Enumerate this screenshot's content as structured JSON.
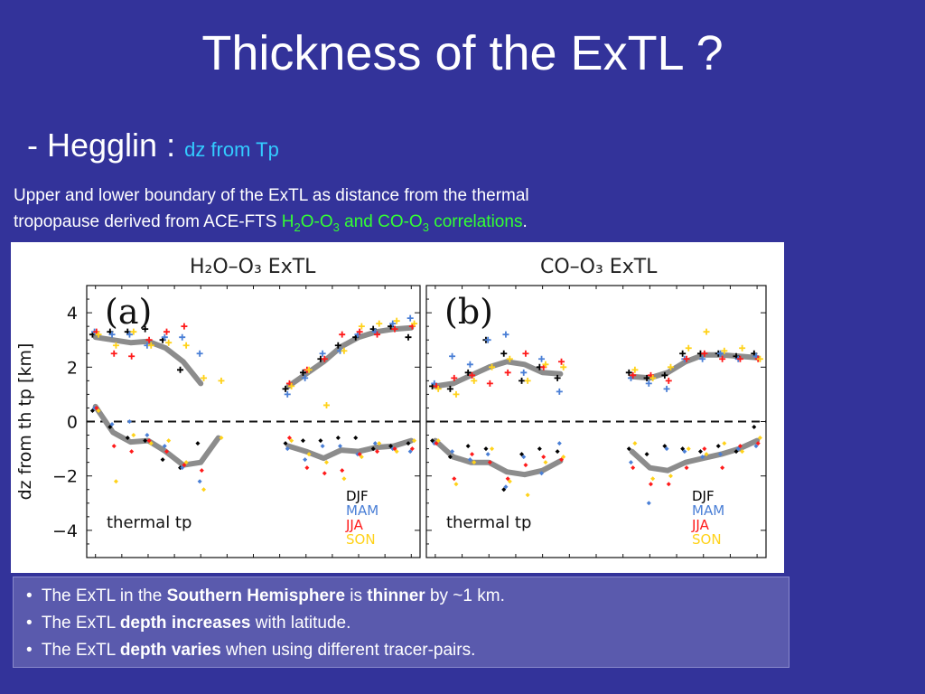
{
  "slide": {
    "title": "Thickness of the ExTL ?",
    "subtitle_prefix": "- Hegglin : ",
    "subtitle_note": "dz from Tp",
    "desc_line1": "Upper and lower boundary of the ExTL as distance from the thermal",
    "desc_line2_pre": "tropopause derived from ACE-FTS ",
    "desc_h": "H",
    "desc_sub2": "2",
    "desc_o": "O-O",
    "desc_sub3": "3",
    "desc_and": " and CO-O",
    "desc_sub3b": "3",
    "desc_corr": " correlations",
    "desc_end": "."
  },
  "bullets": [
    {
      "pre": "The ExTL in the ",
      "b1": "Southern Hemisphere",
      "mid": " is ",
      "b2": "thinner",
      "post": " by ~1 km."
    },
    {
      "pre": "The ExTL ",
      "b1": "depth increases",
      "post": " with latitude."
    },
    {
      "pre": "The ExTL ",
      "b1": "depth varies",
      "post": " when using different tracer-pairs."
    }
  ],
  "colors": {
    "DJF": "#000000",
    "MAM": "#4a7fd6",
    "JJA": "#ff1a1a",
    "SON": "#ffd21a",
    "fit": "#8c8c8c"
  },
  "chart_data": [
    {
      "type": "scatter",
      "panel": "(a)",
      "title": "H₂O–O₃ ExTL",
      "ylabel": "dz from th tp [km]",
      "ylim": [
        -5,
        5
      ],
      "yticks": [
        4,
        2,
        0,
        -2,
        -4
      ],
      "ytick_labels": [
        "4",
        "2",
        "0",
        "−2",
        "−4"
      ],
      "annotation": "thermal tp",
      "legend": [
        "DJF",
        "MAM",
        "JJA",
        "SON"
      ],
      "legend_position": "bottom-right",
      "grid": false,
      "zero_line": "dashed",
      "x": [
        1,
        2,
        3,
        4,
        5,
        6,
        7,
        8,
        12,
        13,
        14,
        15,
        16,
        17,
        18,
        19
      ],
      "series": [
        {
          "name": "DJF",
          "upper": [
            3.2,
            3.3,
            3.3,
            3.4,
            3.0,
            1.9,
            null,
            null,
            1.2,
            1.8,
            2.3,
            2.8,
            3.1,
            3.4,
            3.5,
            3.1
          ],
          "lower": [
            0.4,
            -0.2,
            -0.6,
            -0.7,
            -1.4,
            -1.7,
            -0.8,
            null,
            -0.8,
            -0.7,
            -0.7,
            -0.6,
            -0.6,
            -1.0,
            -0.9,
            -0.8
          ]
        },
        {
          "name": "MAM",
          "upper": [
            3.3,
            3.2,
            3.2,
            2.8,
            3.1,
            3.1,
            2.5,
            null,
            1.0,
            1.6,
            2.5,
            2.6,
            3.2,
            3.3,
            3.6,
            3.8
          ],
          "lower": [
            0.5,
            -0.1,
            0.0,
            -0.5,
            -0.9,
            -1.7,
            -2.2,
            null,
            -1.0,
            -1.4,
            -0.9,
            -0.9,
            -1.2,
            -0.8,
            -1.0,
            -1.1
          ]
        },
        {
          "name": "JJA",
          "upper": [
            3.3,
            2.5,
            2.4,
            3.0,
            3.3,
            3.5,
            null,
            null,
            1.4,
            1.9,
            2.3,
            3.2,
            3.3,
            3.2,
            3.4,
            3.5
          ],
          "lower": [
            0.5,
            -0.9,
            -1.1,
            -0.7,
            -1.1,
            -1.6,
            -1.8,
            null,
            -0.6,
            -1.7,
            -1.9,
            -1.8,
            -1.2,
            -1.1,
            -1.0,
            -1.0
          ]
        },
        {
          "name": "SON",
          "upper": [
            3.2,
            2.8,
            3.3,
            2.8,
            2.9,
            2.8,
            1.6,
            1.5,
            1.3,
            1.9,
            0.6,
            2.6,
            3.5,
            3.6,
            3.7,
            3.6
          ],
          "lower": [
            0.4,
            -2.2,
            -0.5,
            -0.8,
            -0.7,
            -1.5,
            -2.5,
            -0.6,
            -0.7,
            -1.2,
            -1.5,
            -2.1,
            -1.3,
            -0.8,
            -1.1,
            -0.7
          ]
        }
      ],
      "fit_upper": [
        [
          1,
          3.1
        ],
        [
          2,
          3.0
        ],
        [
          3,
          2.9
        ],
        [
          4,
          2.95
        ],
        [
          5,
          2.7
        ],
        [
          6,
          2.2
        ],
        [
          7,
          1.4
        ]
      ],
      "fit_upper2": [
        [
          12,
          1.3
        ],
        [
          14,
          2.2
        ],
        [
          15,
          2.75
        ],
        [
          16,
          3.1
        ],
        [
          17,
          3.3
        ],
        [
          18,
          3.4
        ],
        [
          19,
          3.45
        ]
      ],
      "fit_lower": [
        [
          1,
          0.55
        ],
        [
          2,
          -0.4
        ],
        [
          3,
          -0.75
        ],
        [
          4,
          -0.7
        ],
        [
          5,
          -1.1
        ],
        [
          6,
          -1.6
        ],
        [
          7,
          -1.5
        ],
        [
          8,
          -0.6
        ]
      ],
      "fit_lower2": [
        [
          12,
          -0.9
        ],
        [
          13,
          -1.1
        ],
        [
          14,
          -1.35
        ],
        [
          15,
          -1.05
        ],
        [
          16,
          -1.1
        ],
        [
          17,
          -0.95
        ],
        [
          18,
          -0.9
        ],
        [
          19,
          -0.7
        ]
      ]
    },
    {
      "type": "scatter",
      "panel": "(b)",
      "title": "CO–O₃ ExTL",
      "ylim": [
        -5,
        5
      ],
      "annotation": "thermal tp",
      "legend": [
        "DJF",
        "MAM",
        "JJA",
        "SON"
      ],
      "legend_position": "bottom-right",
      "grid": false,
      "zero_line": "dashed",
      "x": [
        1,
        2,
        3,
        4,
        5,
        6,
        7,
        8,
        12,
        13,
        14,
        15,
        16,
        17,
        18,
        19
      ],
      "series": [
        {
          "name": "DJF",
          "upper": [
            1.3,
            1.2,
            1.8,
            3.0,
            2.5,
            1.5,
            2.0,
            1.6,
            1.8,
            1.6,
            1.7,
            2.5,
            2.5,
            2.5,
            2.4,
            2.5
          ],
          "lower": [
            -0.7,
            -1.3,
            -0.9,
            -1.0,
            -2.5,
            -1.2,
            -1.0,
            -1.1,
            -1.0,
            -1.2,
            -0.9,
            -1.0,
            -1.1,
            -0.9,
            -1.1,
            -0.2
          ]
        },
        {
          "name": "MAM",
          "upper": [
            1.4,
            2.4,
            2.1,
            3.0,
            3.2,
            1.8,
            2.3,
            1.1,
            1.6,
            1.4,
            1.2,
            2.3,
            2.3,
            2.5,
            2.3,
            2.4
          ],
          "lower": [
            -0.8,
            -1.1,
            -1.4,
            -1.2,
            -2.4,
            -1.3,
            -1.9,
            -0.8,
            -1.5,
            -3.0,
            -1.0,
            -1.1,
            -1.3,
            -1.2,
            -1.0,
            -0.9
          ]
        },
        {
          "name": "JJA",
          "upper": [
            1.3,
            1.6,
            1.7,
            1.4,
            1.8,
            2.5,
            2.0,
            2.2,
            1.7,
            1.7,
            1.5,
            2.3,
            2.5,
            2.3,
            2.3,
            2.3
          ],
          "lower": [
            -0.8,
            -2.1,
            -1.2,
            -1.5,
            -2.1,
            -1.6,
            -1.3,
            -1.4,
            -1.7,
            -2.3,
            -2.3,
            -1.7,
            -1.0,
            -1.7,
            -0.9,
            -0.8
          ]
        },
        {
          "name": "SON",
          "upper": [
            1.2,
            1.0,
            1.5,
            2.0,
            2.3,
            1.5,
            2.1,
            2.0,
            1.9,
            1.6,
            2.0,
            2.7,
            3.3,
            2.6,
            2.7,
            2.3
          ],
          "lower": [
            -0.7,
            -2.3,
            -1.5,
            -1.0,
            -2.2,
            -2.7,
            -1.5,
            -1.3,
            -0.8,
            -2.1,
            -2.0,
            -1.0,
            -1.2,
            -0.8,
            -1.1,
            -0.6
          ]
        }
      ],
      "fit_upper": [
        [
          1,
          1.3
        ],
        [
          2,
          1.4
        ],
        [
          3,
          1.7
        ],
        [
          4,
          2.0
        ],
        [
          5,
          2.2
        ],
        [
          6,
          2.1
        ],
        [
          7,
          1.8
        ],
        [
          8,
          1.75
        ]
      ],
      "fit_upper2": [
        [
          12,
          1.65
        ],
        [
          13,
          1.6
        ],
        [
          14,
          1.8
        ],
        [
          15,
          2.2
        ],
        [
          16,
          2.45
        ],
        [
          17,
          2.45
        ],
        [
          18,
          2.4
        ],
        [
          19,
          2.35
        ]
      ],
      "fit_lower": [
        [
          1,
          -0.7
        ],
        [
          2,
          -1.3
        ],
        [
          3,
          -1.5
        ],
        [
          4,
          -1.5
        ],
        [
          5,
          -1.85
        ],
        [
          6,
          -1.95
        ],
        [
          7,
          -1.8
        ],
        [
          8,
          -1.45
        ]
      ],
      "fit_lower2": [
        [
          12,
          -1.1
        ],
        [
          13,
          -1.7
        ],
        [
          14,
          -1.8
        ],
        [
          15,
          -1.5
        ],
        [
          16,
          -1.35
        ],
        [
          17,
          -1.2
        ],
        [
          18,
          -1.0
        ],
        [
          19,
          -0.7
        ]
      ]
    }
  ]
}
